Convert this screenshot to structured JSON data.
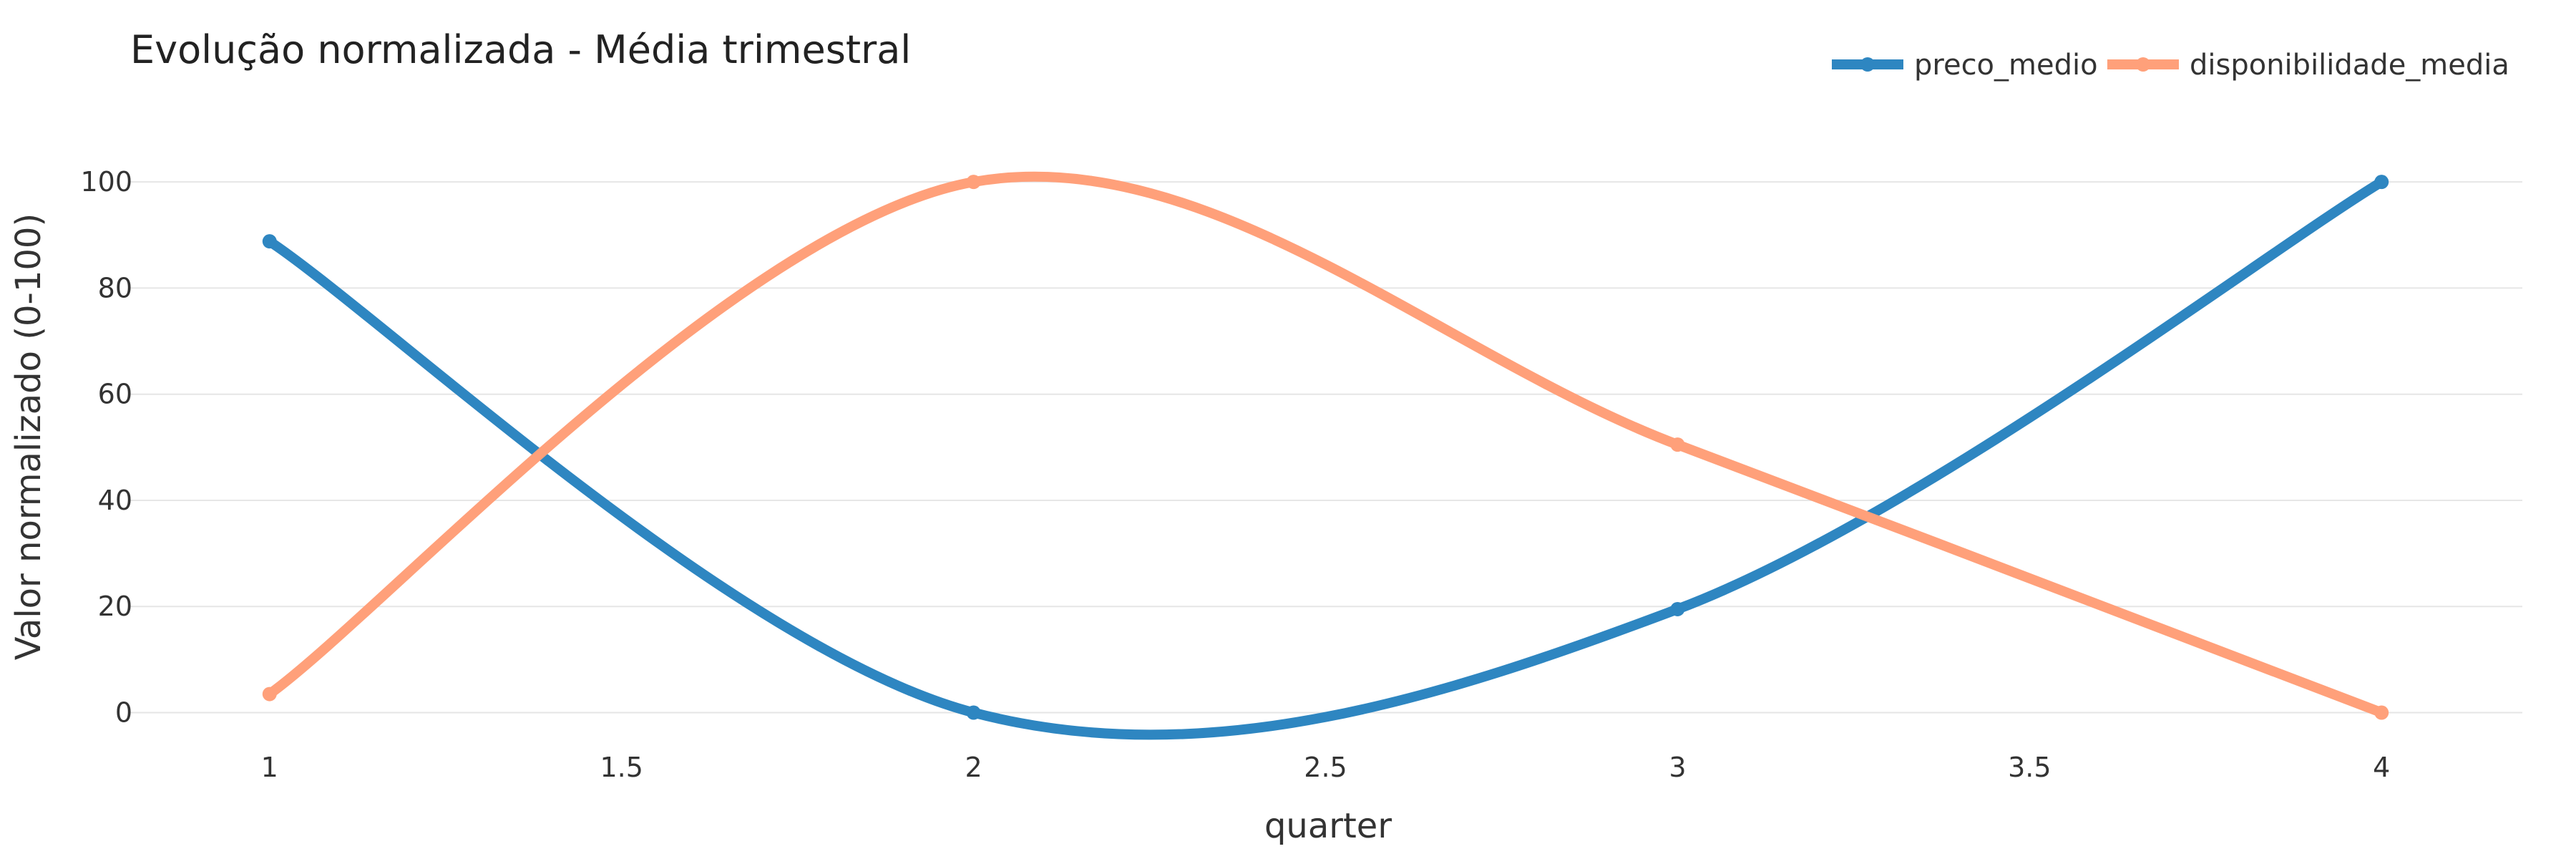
{
  "chart_data": {
    "type": "line",
    "title": "Evolução normalizada - Média trimestral",
    "xlabel": "quarter",
    "ylabel": "Valor normalizado (0-100)",
    "x": [
      1,
      2,
      3,
      4
    ],
    "xlim": [
      0.8,
      4.2
    ],
    "ylim": [
      -6,
      110
    ],
    "x_ticks": [
      1,
      1.5,
      2,
      2.5,
      3,
      3.5,
      4
    ],
    "y_ticks": [
      0,
      20,
      40,
      60,
      80,
      100
    ],
    "grid": "horizontal",
    "legend_position": "top-right",
    "series": [
      {
        "name": "preco_medio",
        "color": "#2E86C1",
        "values": [
          88.8,
          0,
          19.5,
          100
        ]
      },
      {
        "name": "disponibilidade_media",
        "color": "#FFA07A",
        "values": [
          3.5,
          100,
          50.5,
          0
        ]
      }
    ]
  }
}
